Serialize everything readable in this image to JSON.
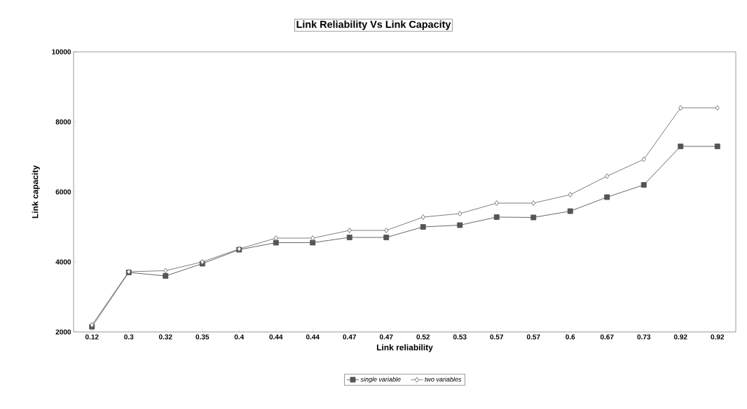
{
  "chart_data": {
    "type": "line",
    "title": "Link Reliability Vs Link Capacity",
    "xlabel": "Link reliability",
    "ylabel": "Link capacity",
    "categories": [
      "0.12",
      "0.3",
      "0.32",
      "0.35",
      "0.4",
      "0.44",
      "0.44",
      "0.47",
      "0.47",
      "0.52",
      "0.53",
      "0.57",
      "0.57",
      "0.6",
      "0.67",
      "0.73",
      "0.92",
      "0.92"
    ],
    "series": [
      {
        "name": "single variable",
        "color": "#555555",
        "marker": "square",
        "values": [
          2150,
          3700,
          3600,
          3950,
          4350,
          4550,
          4550,
          4700,
          4700,
          5000,
          5050,
          5280,
          5270,
          5450,
          5850,
          6200,
          7300,
          7300
        ]
      },
      {
        "name": "two variables",
        "color": "#6e6e6e",
        "marker": "diamond",
        "values": [
          2200,
          3720,
          3750,
          4000,
          4370,
          4680,
          4680,
          4900,
          4900,
          5280,
          5380,
          5680,
          5680,
          5920,
          6450,
          6930,
          8400,
          8400
        ]
      }
    ],
    "ylim": [
      2000,
      10000
    ],
    "yticks": [
      2000,
      4000,
      6000,
      8000,
      10000
    ],
    "grid": false,
    "legend": "bottom",
    "line_style": "solid"
  }
}
